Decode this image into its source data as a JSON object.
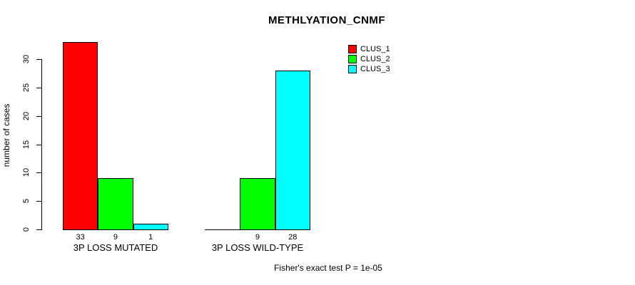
{
  "title": "METHLYATION_CNMF",
  "footer": "Fisher's exact test P = 1e-05",
  "chart_data": {
    "type": "bar",
    "title": "METHLYATION_CNMF",
    "xlabel": "",
    "ylabel": "number of cases",
    "ylim": [
      0,
      33
    ],
    "yticks": [
      0,
      5,
      10,
      15,
      20,
      25,
      30
    ],
    "grid": false,
    "legend_position": "top-right",
    "series_names": [
      "CLUS_1",
      "CLUS_2",
      "CLUS_3"
    ],
    "series_colors": [
      "#ff0000",
      "#00ff00",
      "#00ffff"
    ],
    "legend": [
      {
        "label": "CLUS_1",
        "color": "#ff0000"
      },
      {
        "label": "CLUS_2",
        "color": "#00ff00"
      },
      {
        "label": "CLUS_3",
        "color": "#00ffff"
      }
    ],
    "groups": [
      {
        "label": "3P LOSS MUTATED",
        "values": [
          33,
          9,
          1
        ],
        "value_labels": [
          "33",
          "9",
          "1"
        ]
      },
      {
        "label": "3P LOSS WILD-TYPE",
        "values": [
          0,
          9,
          28
        ],
        "value_labels": [
          "",
          "9",
          "28"
        ]
      }
    ],
    "annotation": "Fisher's exact test P = 1e-05"
  }
}
